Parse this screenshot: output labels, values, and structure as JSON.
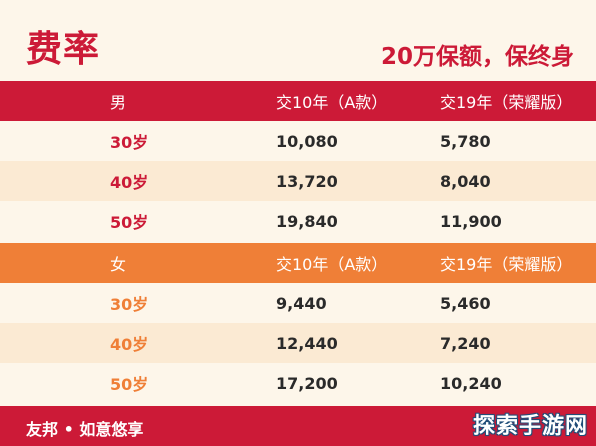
{
  "title": "费率",
  "subtitle": "20万保额，保终身",
  "male_section": {
    "header": [
      "男",
      "交10年（A款）",
      "交19年（荣耀版）"
    ],
    "rows": [
      [
        "30岁",
        "10,080",
        "5,780"
      ],
      [
        "40岁",
        "13,720",
        "8,040"
      ],
      [
        "50岁",
        "19,840",
        "11,900"
      ]
    ]
  },
  "female_section": {
    "header": [
      "女",
      "交10年（A款）",
      "交19年（荣耀版）"
    ],
    "rows": [
      [
        "30岁",
        "9,440",
        "5,460"
      ],
      [
        "40岁",
        "12,440",
        "7,240"
      ],
      [
        "50岁",
        "17,200",
        "10,240"
      ]
    ]
  },
  "footer": "友邦 • 如意悠享",
  "watermark": "探索手游网",
  "colors": {
    "brand_red": "#cc1a37",
    "brand_orange": "#ef7f37",
    "cream": "#fdf6ea",
    "tint": "#fbead3"
  }
}
